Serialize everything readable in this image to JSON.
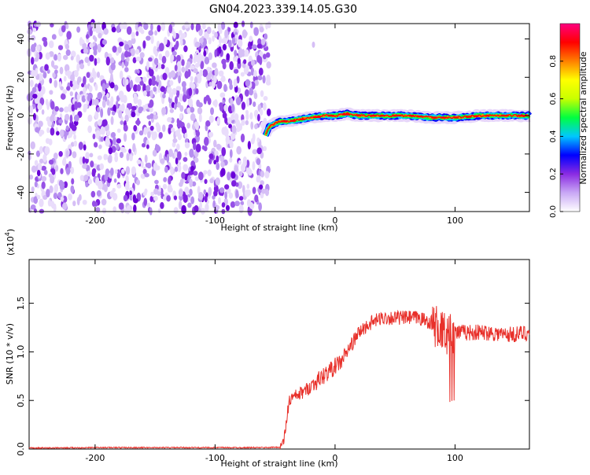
{
  "title": "GN04.2023.339.14.05.G30",
  "chart_data": [
    {
      "type": "heatmap",
      "xlabel": "Height of straight line (km)",
      "ylabel": "Frequency (Hz)",
      "xlim": [
        -255,
        162
      ],
      "ylim": [
        -50,
        48
      ],
      "xticks": [
        -200,
        -100,
        0,
        100
      ],
      "yticks": [
        -40,
        -20,
        0,
        20,
        40
      ],
      "noise_region_x": [
        -255,
        -55
      ],
      "ridge": {
        "x": [
          -58,
          -55,
          -50,
          -45,
          -40,
          -30,
          -20,
          -10,
          0,
          10,
          20,
          40,
          60,
          80,
          90,
          100,
          120,
          140,
          162
        ],
        "frequency": [
          -10,
          -6,
          -4,
          -3,
          -3,
          -2,
          -1,
          0,
          0,
          1,
          0,
          0,
          0,
          -1,
          -1,
          -1,
          0,
          0,
          0
        ]
      },
      "colorbar": {
        "label": "Normalized spectral amplitude",
        "range": [
          0.0,
          1.0
        ],
        "ticks": [
          0.0,
          0.2,
          0.4,
          0.6,
          0.8
        ],
        "tick_labels": [
          "0.0",
          "0.2",
          "0.4",
          "0.6",
          "0.8"
        ],
        "colors": [
          "#ffffff",
          "#c9a8f5",
          "#8a2be2",
          "#0000ff",
          "#00c8ff",
          "#00ff40",
          "#c8ff00",
          "#ffff00",
          "#ff8000",
          "#ff0000",
          "#ff0080"
        ]
      }
    },
    {
      "type": "line",
      "xlabel": "Height of straight line (km)",
      "ylabel": "SNR (10 * v/v)",
      "y_scale_label": "(x10",
      "y_scale_exp": "4",
      "y_scale_close": ")",
      "xlim": [
        -255,
        162
      ],
      "ylim": [
        0,
        19500
      ],
      "xticks": [
        -200,
        -100,
        0,
        100
      ],
      "yticks": [
        0,
        5000,
        10000,
        15000
      ],
      "ytick_labels": [
        "0.0",
        "0.5",
        "1.0",
        "1.5"
      ],
      "color": "#e8302a",
      "series": [
        {
          "x": [
            -255,
            -200,
            -150,
            -100,
            -60,
            -45,
            -42,
            -40,
            -38,
            -35,
            -30,
            -25,
            -20,
            -15,
            -10,
            -5,
            0,
            5,
            10,
            15,
            20,
            25,
            30,
            40,
            50,
            60,
            70,
            80,
            85,
            88,
            90,
            92,
            95,
            98,
            100,
            105,
            110,
            120,
            130,
            140,
            150,
            162
          ],
          "y": [
            100,
            150,
            150,
            150,
            150,
            200,
            1200,
            3500,
            5000,
            5300,
            5600,
            6000,
            6500,
            7000,
            7500,
            8000,
            8500,
            9000,
            10000,
            11000,
            12000,
            12500,
            13000,
            13500,
            13500,
            13500,
            13500,
            13000,
            12500,
            12200,
            12000,
            12000,
            11800,
            12000,
            12000,
            12000,
            12000,
            12000,
            12000,
            11800,
            11800,
            12000
          ]
        }
      ]
    }
  ]
}
